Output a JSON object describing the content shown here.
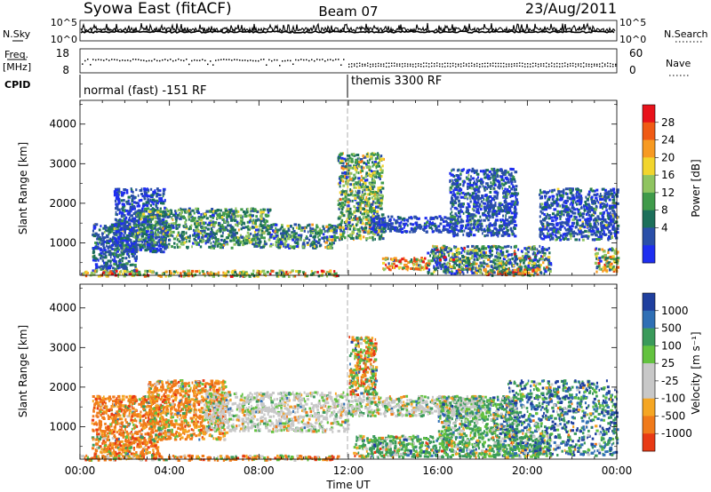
{
  "header": {
    "title": "Syowa East (fitACF)",
    "beam": "Beam 07",
    "date": "23/Aug/2011"
  },
  "top_panels": {
    "nsky_label": "N.Sky",
    "nsky_ticks": [
      "10^5",
      "10^0"
    ],
    "nsearch_label": "N.Search",
    "nsearch_ticks": [
      "10^5",
      "10^0"
    ],
    "freq_label": "Freq.",
    "freq_unit": "[MHz]",
    "freq_ticks": [
      "18",
      "8"
    ],
    "nave_label": "Nave",
    "nave_ticks": [
      "60",
      "0"
    ],
    "cpid_label": "CPID",
    "cpid_segments": [
      "normal (fast) -151 RF",
      "themis 3300 RF"
    ]
  },
  "chart_data": [
    {
      "type": "heatmap",
      "name": "power",
      "ylabel": "Slant Range [km]",
      "yticks": [
        1000,
        2000,
        3000,
        4000
      ],
      "ylim": [
        180,
        4600
      ],
      "xticks": [
        "00:00",
        "04:00",
        "08:00",
        "12:00",
        "16:00",
        "20:00",
        "00:00"
      ],
      "xlim_hours": [
        0,
        24
      ],
      "colorbar": {
        "label": "Power [dB]",
        "ticks": [
          "28",
          "24",
          "20",
          "16",
          "12",
          "8",
          "4"
        ],
        "colors": [
          "#e8121a",
          "#f05a14",
          "#f79a22",
          "#f2d52d",
          "#8fc460",
          "#3f9a4a",
          "#1c6f5a",
          "#2a4fa8",
          "#1e2ef0"
        ]
      },
      "color_scale": [
        "#1e2ef0",
        "#2a4fa8",
        "#1c6f5a",
        "#3f9a4a",
        "#8fc460",
        "#f2d52d",
        "#f79a22",
        "#f05a14",
        "#e8121a"
      ],
      "regions": [
        {
          "t0": 0.5,
          "t1": 2.5,
          "r0": 300,
          "r1": 1500,
          "w": [
            2,
            5,
            3,
            1,
            0.5,
            0.2,
            0,
            0,
            0
          ]
        },
        {
          "t0": 1.5,
          "t1": 3.8,
          "r0": 800,
          "r1": 2400,
          "w": [
            5,
            6,
            2,
            0.6,
            0.2,
            0,
            0,
            0,
            0
          ]
        },
        {
          "t0": 2.5,
          "t1": 8.5,
          "r0": 900,
          "r1": 1900,
          "w": [
            1,
            4,
            5,
            4,
            2.5,
            1,
            0.3,
            0,
            0
          ]
        },
        {
          "t0": 8.5,
          "t1": 11.5,
          "r0": 900,
          "r1": 1500,
          "w": [
            1,
            3,
            3,
            3,
            1.5,
            0.6,
            0.2,
            0,
            0
          ]
        },
        {
          "t0": 11.5,
          "t1": 13.5,
          "r0": 1100,
          "r1": 3300,
          "w": [
            0.5,
            2,
            4,
            4,
            3,
            2.5,
            1,
            0.3,
            0
          ]
        },
        {
          "t0": 13.0,
          "t1": 17.0,
          "r0": 1300,
          "r1": 1700,
          "w": [
            4,
            6,
            1,
            0.5,
            0,
            0,
            0,
            0,
            0
          ]
        },
        {
          "t0": 13.5,
          "t1": 15.5,
          "r0": 350,
          "r1": 650,
          "w": [
            0,
            0.5,
            1,
            1,
            2,
            3,
            3,
            3,
            2
          ]
        },
        {
          "t0": 15.5,
          "t1": 21.0,
          "r0": 250,
          "r1": 950,
          "w": [
            2,
            3,
            3,
            2,
            1.5,
            1,
            0.7,
            0.4,
            0.2
          ]
        },
        {
          "t0": 18.0,
          "t1": 20.5,
          "r0": 200,
          "r1": 380,
          "w": [
            0,
            0.5,
            1,
            1,
            1,
            2,
            2,
            2,
            1
          ]
        },
        {
          "t0": 16.5,
          "t1": 19.5,
          "r0": 1200,
          "r1": 2900,
          "w": [
            4,
            6,
            2,
            1,
            0.5,
            0,
            0,
            0,
            0
          ]
        },
        {
          "t0": 20.5,
          "t1": 24.0,
          "r0": 1100,
          "r1": 2400,
          "w": [
            5,
            6,
            2,
            1,
            0.5,
            0.2,
            0,
            0,
            0
          ]
        },
        {
          "t0": 0.0,
          "t1": 11.5,
          "r0": 180,
          "r1": 330,
          "w": [
            0,
            0.5,
            1,
            2,
            3,
            2,
            2,
            1,
            0.5
          ]
        },
        {
          "t0": 23.0,
          "t1": 24.0,
          "r0": 300,
          "r1": 900,
          "w": [
            0.5,
            1,
            1.5,
            2,
            2,
            2,
            2,
            1.5,
            1
          ]
        }
      ]
    },
    {
      "type": "heatmap",
      "name": "velocity",
      "ylabel": "Slant Range [km]",
      "yticks": [
        1000,
        2000,
        3000,
        4000
      ],
      "ylim": [
        180,
        4600
      ],
      "xticks": [
        "00:00",
        "04:00",
        "08:00",
        "12:00",
        "16:00",
        "20:00",
        "00:00"
      ],
      "xlim_hours": [
        0,
        24
      ],
      "xlabel": "Time UT",
      "colorbar": {
        "label": "Velocity [m s⁻¹]",
        "ticks": [
          "1000",
          "500",
          "100",
          "25",
          "-25",
          "-100",
          "-500",
          "-1000"
        ],
        "colors": [
          "#1f3f9e",
          "#2f6fb5",
          "#3a9a5a",
          "#63c23f",
          "#c8c8c8",
          "#c8c8c8",
          "#f5a623",
          "#f07a1a",
          "#e83a14"
        ]
      },
      "color_scale": [
        "#1f3f9e",
        "#2f6fb5",
        "#3a9a5a",
        "#63c23f",
        "#c8c8c8",
        "#f5a623",
        "#f07a1a",
        "#e83a14"
      ],
      "regions": [
        {
          "t0": 0.5,
          "t1": 3.5,
          "r0": 250,
          "r1": 1800,
          "w": [
            0,
            0.2,
            0.5,
            0.5,
            0.3,
            2,
            5,
            2
          ]
        },
        {
          "t0": 3.0,
          "t1": 6.5,
          "r0": 700,
          "r1": 2200,
          "w": [
            0,
            0.2,
            0.5,
            1,
            0.5,
            3,
            5,
            1
          ]
        },
        {
          "t0": 5.5,
          "t1": 12.0,
          "r0": 900,
          "r1": 1900,
          "w": [
            0,
            0.2,
            0.5,
            1,
            6,
            0.5,
            0.4,
            0
          ]
        },
        {
          "t0": 12.0,
          "t1": 13.2,
          "r0": 1800,
          "r1": 3300,
          "w": [
            0.3,
            0.5,
            1,
            2,
            0.5,
            1.5,
            2,
            1.5
          ]
        },
        {
          "t0": 12.0,
          "t1": 18.0,
          "r0": 1300,
          "r1": 1800,
          "w": [
            0,
            0.2,
            1,
            1,
            5,
            0.5,
            0.3,
            0
          ]
        },
        {
          "t0": 12.2,
          "t1": 21.0,
          "r0": 250,
          "r1": 800,
          "w": [
            0.3,
            0.5,
            5,
            2,
            1,
            0.8,
            0.4,
            0.2
          ]
        },
        {
          "t0": 16.0,
          "t1": 19.5,
          "r0": 800,
          "r1": 1800,
          "w": [
            0.5,
            1,
            3,
            2,
            2,
            0.5,
            0.2,
            0
          ]
        },
        {
          "t0": 19.0,
          "t1": 24.0,
          "r0": 300,
          "r1": 2200,
          "w": [
            3,
            2,
            3,
            1,
            0.5,
            0.3,
            0.2,
            0
          ]
        },
        {
          "t0": 0.0,
          "t1": 11.5,
          "r0": 180,
          "r1": 300,
          "w": [
            0,
            0,
            0.5,
            1,
            1,
            1,
            3,
            1
          ]
        }
      ]
    }
  ]
}
